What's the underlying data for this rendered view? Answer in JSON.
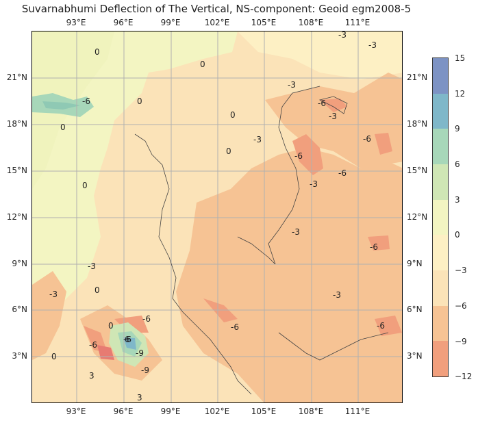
{
  "title": "Suvarnabhumi Deflection of The Vertical, NS-component: Geoid egm2008-5",
  "lon_ticks": [
    "93°E",
    "96°E",
    "99°E",
    "102°E",
    "105°E",
    "108°E",
    "111°E"
  ],
  "lat_ticks": [
    "21°N",
    "18°N",
    "15°N",
    "12°N",
    "9°N",
    "6°N",
    "3°N"
  ],
  "colorbar": {
    "ticks": [
      "15",
      "12",
      "9",
      "6",
      "3",
      "0",
      "−3",
      "−6",
      "−9",
      "−12"
    ],
    "colors": [
      "#7d93c4",
      "#7fb7c9",
      "#a7d7b9",
      "#cfe6b5",
      "#f3f5c2",
      "#fdf0c4",
      "#fbe3b8",
      "#f6c394",
      "#f19f7d",
      "#e77b72"
    ]
  },
  "contour_labels": [
    "0",
    "0",
    "0",
    "0",
    "0",
    "0",
    "0",
    "0",
    "0",
    "0",
    "-3",
    "-3",
    "-3",
    "-3",
    "-3",
    "-3",
    "-3",
    "-3",
    "-3",
    "-3",
    "-6",
    "-6",
    "-6",
    "-6",
    "-6",
    "-6",
    "-6",
    "-6",
    "-6",
    "-6",
    "-6",
    "-9",
    "-9",
    "3",
    "3",
    "6"
  ]
}
